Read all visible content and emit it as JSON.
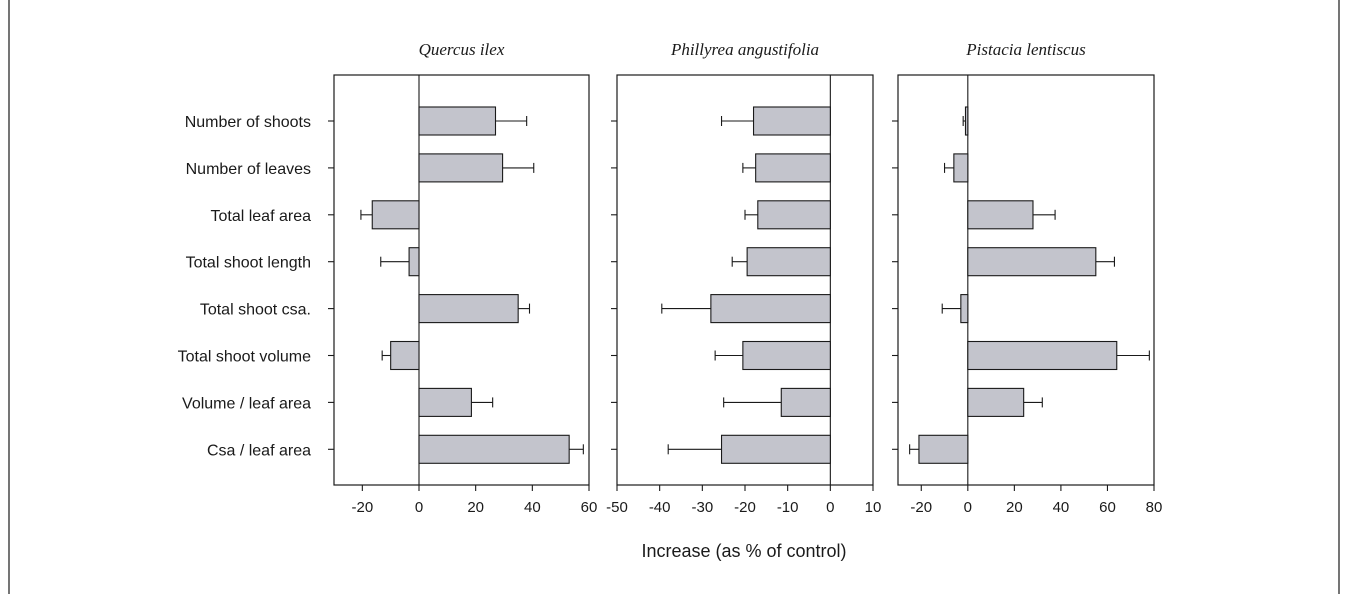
{
  "chart_data": {
    "type": "bar",
    "orientation": "horizontal",
    "xlabel": "Increase (as % of control)",
    "categories": [
      "Number of shoots",
      "Number of leaves",
      "Total leaf area",
      "Total shoot length",
      "Total shoot csa.",
      "Total shoot volume",
      "Volume / leaf area",
      "Csa / leaf area"
    ],
    "panels": [
      {
        "title": "Quercus ilex",
        "xlim": [
          -30,
          60
        ],
        "xticks": [
          -20,
          0,
          20,
          40,
          60
        ],
        "values": [
          27,
          29.5,
          -16.5,
          -3.5,
          35,
          -10,
          18.5,
          53
        ],
        "errors": [
          11,
          11,
          4,
          10,
          4,
          3,
          7.5,
          5
        ]
      },
      {
        "title": "Phillyrea angustifolia",
        "xlim": [
          -50,
          10
        ],
        "xticks": [
          -50,
          -40,
          -30,
          -20,
          -10,
          0,
          10
        ],
        "values": [
          -18,
          -17.5,
          -17,
          -19.5,
          -28,
          -20.5,
          -11.5,
          -25.5
        ],
        "errors": [
          7.5,
          3,
          3,
          3.5,
          11.5,
          6.5,
          13.5,
          12.5
        ]
      },
      {
        "title": "Pistacia lentiscus",
        "xlim": [
          -30,
          80
        ],
        "xticks": [
          -20,
          0,
          20,
          40,
          60,
          80
        ],
        "values": [
          -1,
          -6,
          28,
          55,
          -3,
          64,
          24,
          -21
        ],
        "errors": [
          1,
          4,
          9.5,
          8,
          8,
          14,
          8,
          4
        ]
      }
    ]
  }
}
